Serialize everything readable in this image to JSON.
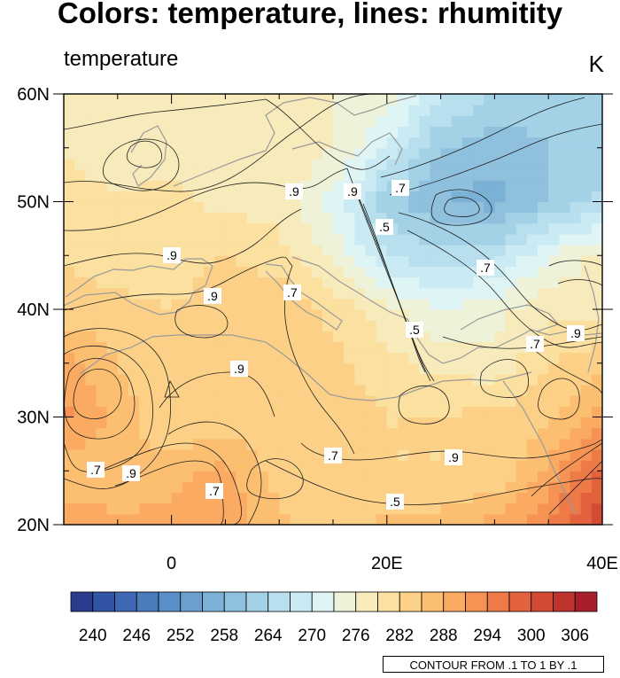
{
  "title": "Colors: temperature, lines: rhumitity",
  "left_string": "temperature",
  "right_string": "K",
  "contour_info": "CONTOUR FROM .1 TO 1 BY .1",
  "chart_data": {
    "type": "heatmap",
    "title": "Colors: temperature, lines: rhumitity",
    "subtitle_left": "temperature",
    "units": "K",
    "x_axis": {
      "range": [
        -10,
        40
      ],
      "ticks": [
        0,
        20,
        40
      ],
      "tick_labels": [
        "0",
        "20E",
        "40E"
      ]
    },
    "y_axis": {
      "range": [
        20,
        60
      ],
      "ticks": [
        20,
        30,
        40,
        50,
        60
      ],
      "tick_labels": [
        "20N",
        "30N",
        "40N",
        "50N",
        "60N"
      ]
    },
    "colorbar": {
      "levels": [
        240,
        243,
        246,
        249,
        252,
        255,
        258,
        261,
        264,
        267,
        270,
        273,
        276,
        279,
        282,
        285,
        288,
        291,
        294,
        297,
        300,
        303,
        306,
        309
      ],
      "labels": [
        "240",
        "246",
        "252",
        "258",
        "264",
        "270",
        "276",
        "282",
        "288",
        "294",
        "300",
        "306"
      ],
      "colors": [
        "#2c3c8c",
        "#3154a4",
        "#3e68b4",
        "#4a7cbc",
        "#5a8ec6",
        "#6ba0ce",
        "#7cb1d6",
        "#8fc1de",
        "#a3d1e6",
        "#b7dfee",
        "#cbebf4",
        "#dff4f5",
        "#eef2d8",
        "#f7ebbb",
        "#fbe0a0",
        "#fcd086",
        "#fcbf72",
        "#fbaa62",
        "#f69354",
        "#ee7a48",
        "#e2623e",
        "#d34b35",
        "#be332d",
        "#a61f2a"
      ]
    },
    "temperature_field": {
      "lons": [
        -10,
        -5,
        0,
        5,
        10,
        15,
        20,
        25,
        30,
        35,
        40
      ],
      "lats": [
        20,
        25,
        30,
        35,
        40,
        45,
        50,
        55,
        60
      ],
      "values": [
        [
          293,
          292,
          292,
          293,
          289,
          286,
          289,
          289,
          292,
          297,
          306
        ],
        [
          289,
          288,
          290,
          292,
          286,
          285,
          285,
          285,
          285,
          292,
          301
        ],
        [
          295,
          290,
          285,
          286,
          286,
          287,
          285,
          285,
          286,
          287,
          292
        ],
        [
          292,
          288,
          285,
          286,
          287,
          286,
          283,
          281,
          280,
          285,
          287
        ],
        [
          286,
          286,
          285,
          287,
          288,
          284,
          280,
          276,
          278,
          281,
          281
        ],
        [
          285,
          283,
          283,
          285,
          283,
          278,
          270,
          268,
          269,
          276,
          280
        ],
        [
          283,
          283,
          283,
          281,
          281,
          275,
          265,
          261,
          260,
          264,
          268
        ],
        [
          282,
          279,
          281,
          281,
          281,
          279,
          273,
          264,
          262,
          264,
          265
        ],
        [
          282,
          279,
          281,
          280,
          280,
          279,
          278,
          271,
          267,
          265,
          265
        ]
      ]
    },
    "relative_humidity_contours": {
      "from": 0.1,
      "to": 1,
      "step": 0.1,
      "line_labels": [
        ".9",
        ".9",
        ".7",
        ".5",
        ".9",
        ".9",
        ".7",
        ".7",
        ".9",
        ".5",
        ".7",
        ".9",
        ".7",
        ".9",
        ".5",
        ".7",
        ".7",
        ".9"
      ]
    }
  }
}
